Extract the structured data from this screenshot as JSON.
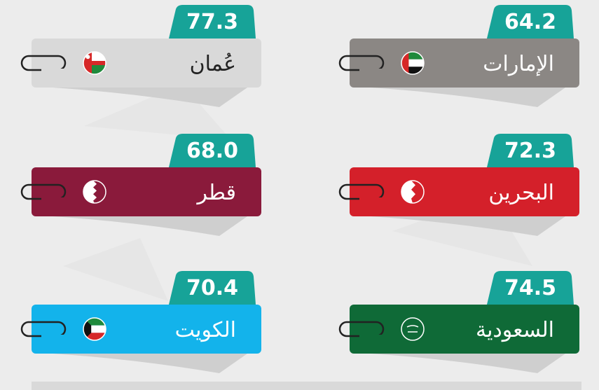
{
  "cards": [
    {
      "name": "عُمان",
      "value": "77.3",
      "color": "#d9d9d9",
      "text_color": "#222222"
    },
    {
      "name": "الإمارات",
      "value": "64.2",
      "color": "#8b8784",
      "text_color": "#ffffff"
    },
    {
      "name": "قطر",
      "value": "68.0",
      "color": "#8a1a3b",
      "text_color": "#ffffff"
    },
    {
      "name": "البحرين",
      "value": "72.3",
      "color": "#d4202a",
      "text_color": "#ffffff"
    },
    {
      "name": "الكويت",
      "value": "70.4",
      "color": "#13b3eb",
      "text_color": "#ffffff"
    },
    {
      "name": "السعودية",
      "value": "74.5",
      "color": "#0f6a37",
      "text_color": "#ffffff"
    }
  ]
}
